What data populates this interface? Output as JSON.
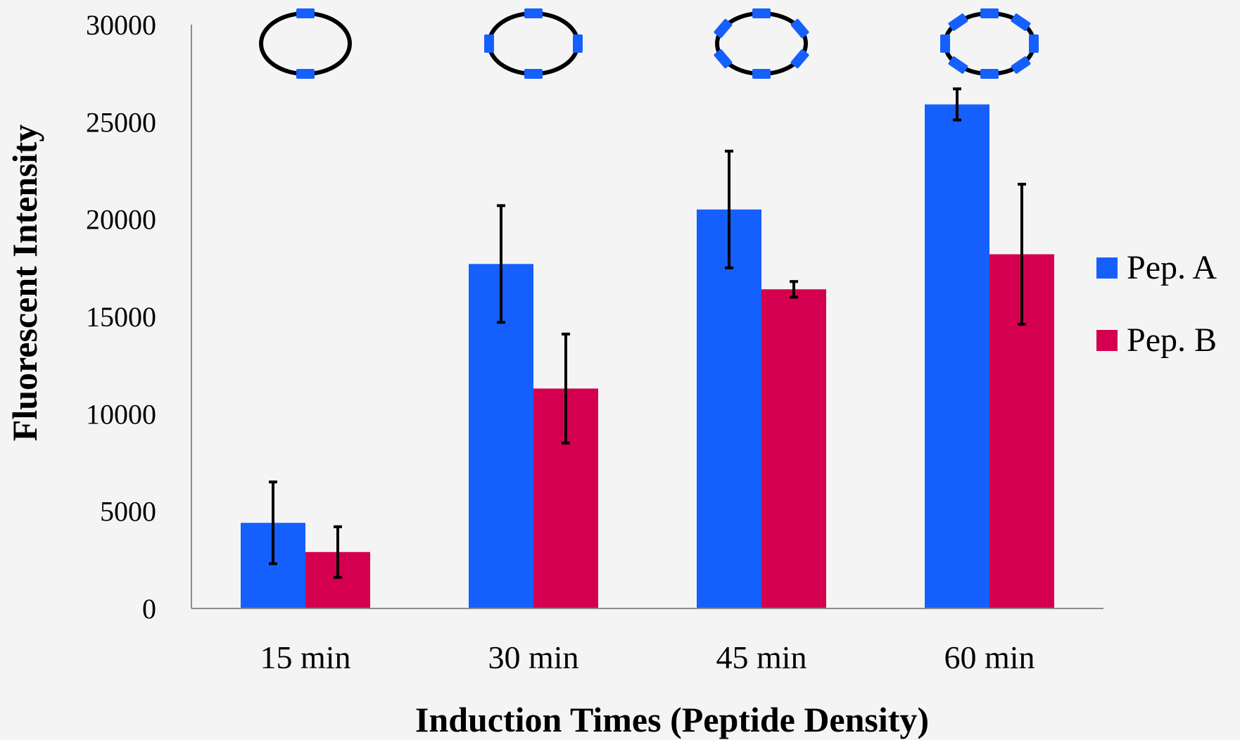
{
  "chart_data": {
    "type": "bar",
    "title": "",
    "xlabel": "Induction Times (Peptide Density)",
    "ylabel": "Fluorescent Intensity",
    "categories": [
      "15 min",
      "30 min",
      "45 min",
      "60 min"
    ],
    "ylim": [
      0,
      30000
    ],
    "yticks": [
      "0",
      "5000",
      "10000",
      "15000",
      "20000",
      "25000",
      "30000"
    ],
    "ytick_values": [
      0,
      5000,
      10000,
      15000,
      20000,
      25000,
      30000
    ],
    "grid": false,
    "legend_position": "right",
    "series": [
      {
        "name": "Pep. A",
        "color": "#1560fd",
        "values": [
          4400,
          17700,
          20500,
          25900
        ],
        "errors": [
          2100,
          3000,
          3000,
          800
        ]
      },
      {
        "name": "Pep. B",
        "color": "#d4004f",
        "values": [
          2900,
          11300,
          16400,
          18200
        ],
        "errors": [
          1300,
          2800,
          400,
          3600
        ]
      }
    ],
    "annotations": {
      "type": "peptide-density-ring-icons",
      "ring_color": "#000000",
      "marker_color": "#1560fd",
      "markers_per_category": [
        2,
        4,
        6,
        8
      ]
    }
  }
}
